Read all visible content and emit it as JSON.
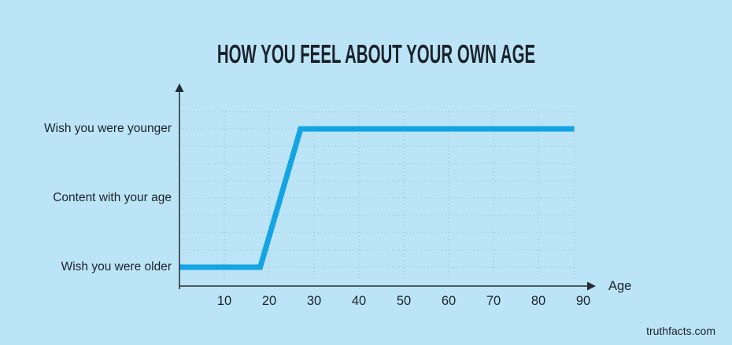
{
  "page": {
    "watermark": "truthfacts.com"
  },
  "colors": {
    "background": "#bce4f7",
    "line": "#14a4e4",
    "grid": "#a0c2d3",
    "axis": "#232b33",
    "text": "#1b232b"
  },
  "chart_data": {
    "type": "line",
    "title": "HOW YOU FEEL ABOUT YOUR OWN AGE",
    "xlabel": "Age",
    "ylabel": "",
    "x_ticks": [
      10,
      20,
      30,
      40,
      50,
      60,
      70,
      80,
      90
    ],
    "xlim": [
      0,
      95
    ],
    "y_categories": [
      "Wish you were older",
      "Content with your age",
      "Wish you were younger"
    ],
    "grid": true,
    "legend": false,
    "series": [
      {
        "points": [
          [
            0,
            "Wish you were older"
          ],
          [
            18,
            "Wish you were older"
          ],
          [
            27,
            "Wish you were younger"
          ],
          [
            88,
            "Wish you were younger"
          ]
        ]
      }
    ]
  }
}
